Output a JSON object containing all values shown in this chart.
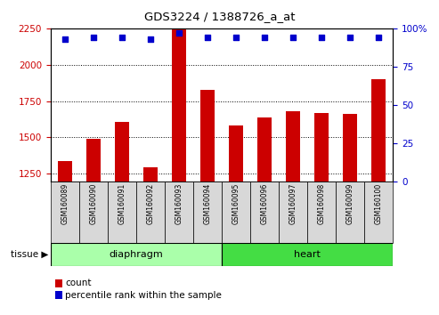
{
  "title": "GDS3224 / 1388726_a_at",
  "samples": [
    "GSM160089",
    "GSM160090",
    "GSM160091",
    "GSM160092",
    "GSM160093",
    "GSM160094",
    "GSM160095",
    "GSM160096",
    "GSM160097",
    "GSM160098",
    "GSM160099",
    "GSM160100"
  ],
  "counts": [
    1340,
    1490,
    1610,
    1295,
    2240,
    1830,
    1580,
    1640,
    1680,
    1670,
    1660,
    1900
  ],
  "percentiles": [
    93,
    94,
    94,
    93,
    97,
    94,
    94,
    94,
    94,
    94,
    94,
    94
  ],
  "ylim_left": [
    1200,
    2250
  ],
  "ylim_right": [
    0,
    100
  ],
  "yticks_left": [
    1250,
    1500,
    1750,
    2000,
    2250
  ],
  "yticks_right": [
    0,
    25,
    50,
    75,
    100
  ],
  "groups": [
    {
      "label": "diaphragm",
      "start": 0,
      "end": 6,
      "color": "#aaffaa"
    },
    {
      "label": "heart",
      "start": 6,
      "end": 12,
      "color": "#44dd44"
    }
  ],
  "tissue_label": "tissue",
  "bar_color": "#cc0000",
  "dot_color": "#0000cc",
  "left_axis_color": "#cc0000",
  "right_axis_color": "#0000cc",
  "legend_count_label": "count",
  "legend_pct_label": "percentile rank within the sample",
  "label_bg_color": "#d8d8d8",
  "plot_bg_color": "#ffffff",
  "grid_color": "#000000"
}
